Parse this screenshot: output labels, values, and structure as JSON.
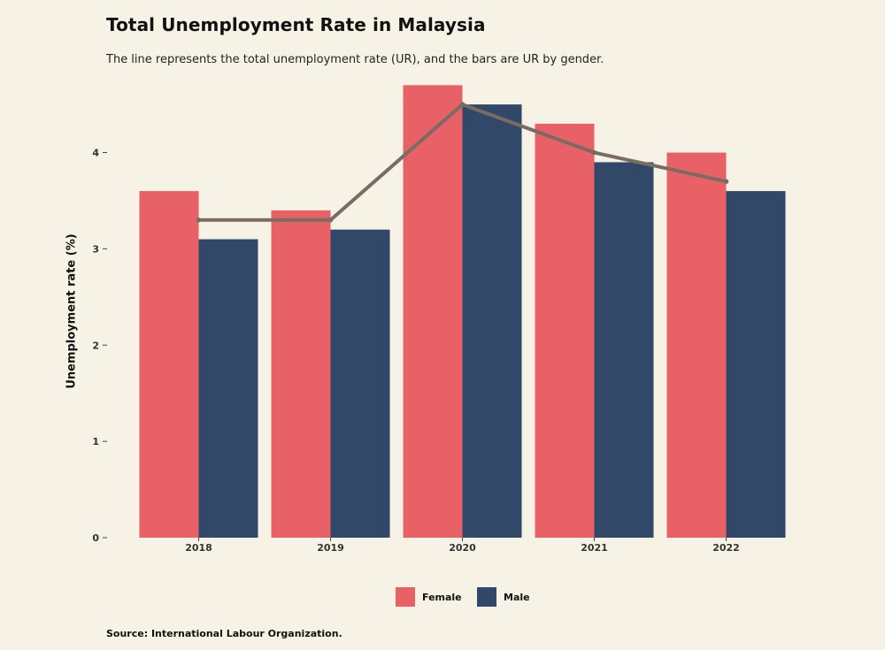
{
  "chart_data": {
    "type": "bar",
    "title": "Total Unemployment Rate in Malaysia",
    "subtitle": "The line represents the total unemployment rate (UR), and the bars are UR by gender.",
    "xlabel": "",
    "ylabel": "Unemployment rate (%)",
    "categories": [
      "2018",
      "2019",
      "2020",
      "2021",
      "2022"
    ],
    "series": [
      {
        "name": "Female",
        "color": "#e86166",
        "values": [
          3.6,
          3.4,
          4.7,
          4.3,
          4.0
        ]
      },
      {
        "name": "Male",
        "color": "#324868",
        "values": [
          3.1,
          3.2,
          4.5,
          3.9,
          3.6
        ]
      }
    ],
    "line": {
      "color": "#7a6b63",
      "values": [
        3.3,
        3.3,
        4.5,
        4.0,
        3.7
      ]
    },
    "yticks": [
      0,
      1,
      2,
      3,
      4
    ],
    "ylim": [
      0,
      4.85
    ],
    "grid": false,
    "legend_position": "bottom-center",
    "source": "Source: International Labour Organization."
  }
}
